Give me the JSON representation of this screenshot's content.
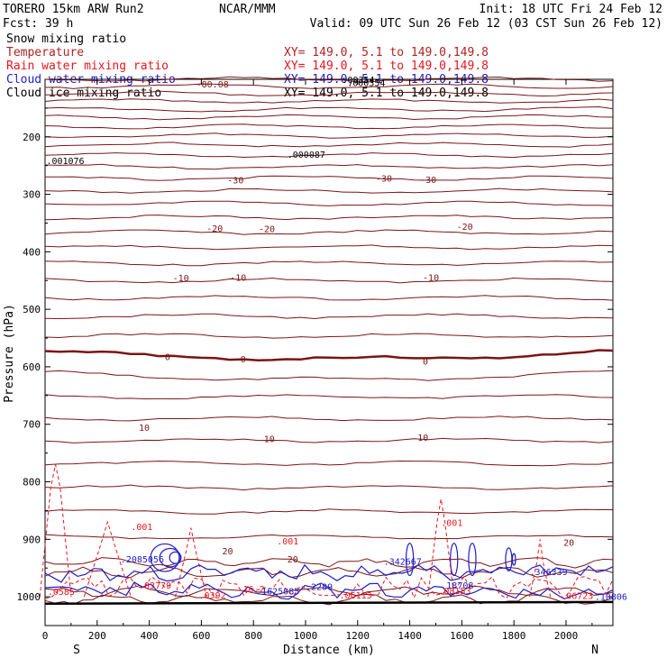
{
  "header": {
    "model": "TORERO  15km ARW   Run2",
    "org": "NCAR/MMM",
    "init": "Init: 18 UTC Fri 24 Feb 12",
    "fcst": "Fcst:   39 h",
    "valid": "Valid: 09 UTC Sun 26 Feb 12 (03 CST Sun 26 Feb 12)"
  },
  "legend": [
    {
      "name": "Snow mixing ratio",
      "color": "#000000",
      "xy": ""
    },
    {
      "name": "Temperature",
      "color": "#b22222",
      "xy": "XY= 149.0,  5.1 to 149.0,149.8"
    },
    {
      "name": "Rain water mixing ratio",
      "color": "#e8161f",
      "xy": "XY= 149.0,  5.1 to 149.0,149.8"
    },
    {
      "name": "Cloud water mixing ratio",
      "color": "#1d1dc8",
      "xy": "XY= 149.0,  5.1 to 149.0,149.8"
    },
    {
      "name": "Cloud ice mixing ratio",
      "color": "#000000",
      "xy": "XY= 149.0,  5.1 to 149.0,149.8"
    }
  ],
  "colors": {
    "temperature": "#7a1515",
    "rain": "#e8161f",
    "cloud_water": "#1d1dc8",
    "ice": "#000000"
  },
  "chart_data": {
    "type": "line",
    "title": "",
    "xlabel": "Distance (km)",
    "ylabel": "Pressure (hPa)",
    "xlim": [
      0,
      2180
    ],
    "ylim": [
      1050,
      100
    ],
    "x_ticks": [
      0,
      200,
      400,
      600,
      800,
      1000,
      1200,
      1400,
      1600,
      1800,
      2000
    ],
    "y_ticks": [
      200,
      300,
      400,
      500,
      600,
      700,
      800,
      900,
      1000
    ],
    "x_end_labels": [
      "S",
      "N"
    ],
    "temperature_labels": [
      {
        "text": "-80.08",
        "x": 580,
        "p": 114
      },
      {
        "text": "-30",
        "x": 700,
        "p": 281
      },
      {
        "text": "-30",
        "x": 1270,
        "p": 278
      },
      {
        "text": "-30",
        "x": 1440,
        "p": 280
      },
      {
        "text": "-20",
        "x": 620,
        "p": 365
      },
      {
        "text": "-20",
        "x": 820,
        "p": 366
      },
      {
        "text": "-20",
        "x": 1580,
        "p": 362
      },
      {
        "text": "-10",
        "x": 490,
        "p": 451
      },
      {
        "text": "-10",
        "x": 710,
        "p": 450
      },
      {
        "text": "-10",
        "x": 1450,
        "p": 450
      },
      {
        "text": "0",
        "x": 460,
        "p": 588
      },
      {
        "text": "0",
        "x": 750,
        "p": 592
      },
      {
        "text": "0",
        "x": 1450,
        "p": 596
      },
      {
        "text": "10",
        "x": 360,
        "p": 711
      },
      {
        "text": "10",
        "x": 840,
        "p": 731
      },
      {
        "text": "10",
        "x": 1430,
        "p": 729
      },
      {
        "text": "20",
        "x": 680,
        "p": 926
      },
      {
        "text": "20",
        "x": 930,
        "p": 940
      },
      {
        "text": "20",
        "x": 1990,
        "p": 911
      }
    ],
    "rain_labels": [
      {
        "text": ".001",
        "x": 330,
        "p": 884
      },
      {
        "text": ".001",
        "x": 890,
        "p": 909
      },
      {
        "text": ".001",
        "x": 1520,
        "p": 877
      },
      {
        "text": ".03779",
        "x": 360,
        "p": 986
      },
      {
        "text": ".0392",
        "x": 590,
        "p": 1003
      },
      {
        "text": ".06113",
        "x": 1130,
        "p": 1003
      },
      {
        "text": ".08153",
        "x": 1510,
        "p": 995
      },
      {
        "text": ".06723",
        "x": 1980,
        "p": 1004
      },
      {
        "text": ".0585",
        "x": 10,
        "p": 997
      },
      {
        "text": "16.2",
        "x": 760,
        "p": 992
      }
    ],
    "cloud_labels": [
      {
        "text": ".2085056",
        "x": 290,
        "p": 940
      },
      {
        "text": ".1625085",
        "x": 810,
        "p": 996
      },
      {
        "text": ".2289",
        "x": 1000,
        "p": 988
      },
      {
        "text": ".342667",
        "x": 1300,
        "p": 944
      },
      {
        "text": ".18708",
        "x": 1520,
        "p": 986
      },
      {
        "text": ".346339",
        "x": 1860,
        "p": 962
      },
      {
        "text": ".10806",
        "x": 2110,
        "p": 1005
      }
    ],
    "ice_labels": [
      {
        "text": ".001076",
        "x": 5,
        "p": 247
      },
      {
        "text": ".000087",
        "x": 930,
        "p": 236
      },
      {
        "text": ".000354",
        "x": 1160,
        "p": 112
      }
    ],
    "snow_labels": [
      {
        "text": ".00354",
        "x": 1140,
        "p": 106
      }
    ]
  }
}
